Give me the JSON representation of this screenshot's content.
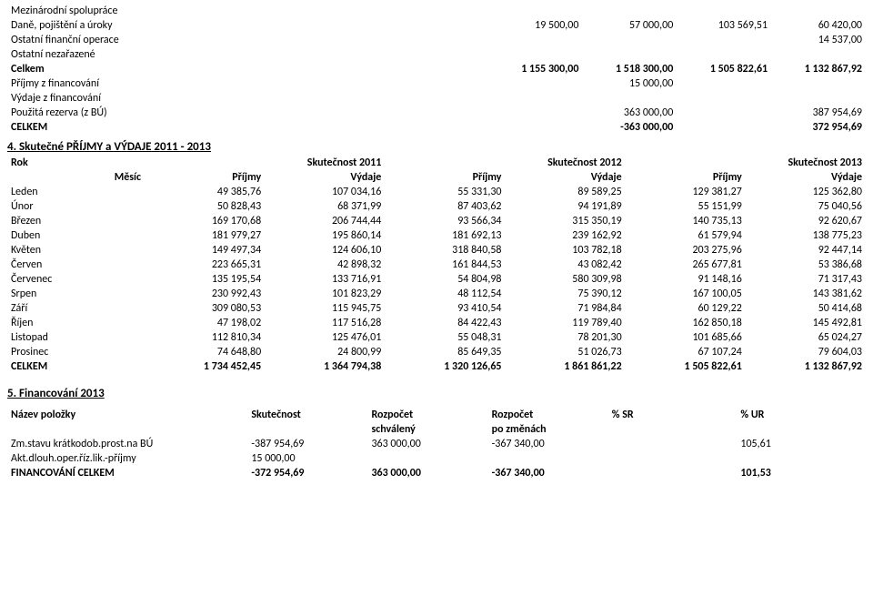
{
  "sectionA": {
    "rows": [
      {
        "label": "Mezinárodní spolupráce",
        "c2": "",
        "c3": "",
        "c4": "",
        "c5": "",
        "c6": "",
        "c7": ""
      },
      {
        "label": "Daně, pojištění a úroky",
        "c2": "",
        "c3": "",
        "c4": "19 500,00",
        "c5": "57 000,00",
        "c6": "103 569,51",
        "c7": "60 420,00"
      },
      {
        "label": "Ostatní finanční operace",
        "c2": "",
        "c3": "",
        "c4": "",
        "c5": "",
        "c6": "",
        "c7": "14 537,00"
      },
      {
        "label": "Ostatní nezařazené",
        "c2": "",
        "c3": "",
        "c4": "",
        "c5": "",
        "c6": "",
        "c7": ""
      },
      {
        "label": "Celkem",
        "bold": true,
        "c2": "",
        "c3": "",
        "c4": "1 155 300,00",
        "c5": "1 518 300,00",
        "c6": "1 505 822,61",
        "c7": "1 132 867,92"
      },
      {
        "label": "Příjmy z financování",
        "c2": "",
        "c3": "",
        "c4": "",
        "c5": "15 000,00",
        "c6": "",
        "c7": ""
      },
      {
        "label": "Výdaje z financování",
        "c2": "",
        "c3": "",
        "c4": "",
        "c5": "",
        "c6": "",
        "c7": ""
      },
      {
        "label": "Použitá rezerva (z BÚ)",
        "c2": "",
        "c3": "",
        "c4": "",
        "c5": "363 000,00",
        "c6": "",
        "c7": "387 954,69"
      },
      {
        "label": "CELKEM",
        "bold": true,
        "c2": "",
        "c3": "",
        "c4": "",
        "c5": "-363 000,00",
        "c6": "",
        "c7": "372 954,69"
      }
    ]
  },
  "section4": {
    "heading": "4. Skutečné PŘÍJMY a VÝDAJE 2011 - 2013",
    "rok_label": "Rok",
    "year1": "Skutečnost 2011",
    "year2": "Skutečnost 2012",
    "year3": "Skutečnost 2013",
    "mesic": "Měsíc",
    "prijmy": "Příjmy",
    "vydaje": "Výdaje",
    "rows": [
      {
        "m": "Leden",
        "p1": "49 385,76",
        "v1": "107 034,16",
        "p2": "55 331,30",
        "v2": "89 589,25",
        "p3": "129 381,27",
        "v3": "125 362,80"
      },
      {
        "m": "Únor",
        "p1": "50 828,43",
        "v1": "68 371,99",
        "p2": "87 403,62",
        "v2": "94 191,89",
        "p3": "55 151,99",
        "v3": "75 040,56"
      },
      {
        "m": "Březen",
        "p1": "169 170,68",
        "v1": "206 744,44",
        "p2": "93 566,34",
        "v2": "315 350,19",
        "p3": "140 735,13",
        "v3": "92 620,67"
      },
      {
        "m": "Duben",
        "p1": "181 979,27",
        "v1": "195 860,14",
        "p2": "181 692,13",
        "v2": "239 162,92",
        "p3": "61 579,94",
        "v3": "138 775,23"
      },
      {
        "m": "Květen",
        "p1": "149 497,34",
        "v1": "124 606,10",
        "p2": "318 840,58",
        "v2": "103 782,18",
        "p3": "203 275,96",
        "v3": "92 447,14"
      },
      {
        "m": "Červen",
        "p1": "223 665,31",
        "v1": "42 898,32",
        "p2": "161 844,53",
        "v2": "43 082,42",
        "p3": "265 677,81",
        "v3": "53 386,68"
      },
      {
        "m": "Červenec",
        "p1": "135 195,54",
        "v1": "133 716,91",
        "p2": "54 804,98",
        "v2": "580 309,98",
        "p3": "91 148,16",
        "v3": "71 317,43"
      },
      {
        "m": "Srpen",
        "p1": "230 992,43",
        "v1": "101 823,29",
        "p2": "48 112,54",
        "v2": "75 390,12",
        "p3": "167 100,05",
        "v3": "143 381,62"
      },
      {
        "m": "Září",
        "p1": "309 080,53",
        "v1": "115 945,75",
        "p2": "93 410,54",
        "v2": "71 984,84",
        "p3": "60 129,22",
        "v3": "50 414,68"
      },
      {
        "m": "Říjen",
        "p1": "47 198,02",
        "v1": "117 516,28",
        "p2": "84 422,43",
        "v2": "119 789,40",
        "p3": "162 850,18",
        "v3": "145 492,81"
      },
      {
        "m": "Listopad",
        "p1": "112 810,34",
        "v1": "125 476,01",
        "p2": "55 048,31",
        "v2": "78 201,30",
        "p3": "101 685,66",
        "v3": "65 024,27"
      },
      {
        "m": "Prosinec",
        "p1": "74 648,80",
        "v1": "24 800,99",
        "p2": "85 649,35",
        "v2": "51 026,73",
        "p3": "67 107,24",
        "v3": "79 604,03"
      },
      {
        "m": "CELKEM",
        "bold": true,
        "p1": "1 734 452,45",
        "v1": "1 364 794,38",
        "p2": "1 320 126,65",
        "v2": "1 861 861,22",
        "p3": "1 505 822,61",
        "v3": "1 132 867,92"
      }
    ]
  },
  "section5": {
    "heading": "5. Financování 2013",
    "header": {
      "c1": "Název položky",
      "c2": "Skutečnost",
      "c3": "Rozpočet",
      "c4": "Rozpočet",
      "c5": "% SR",
      "c6": "% UR"
    },
    "sub": {
      "c3": "schválený",
      "c4": "po změnách"
    },
    "rows": [
      {
        "c1": "Zm.stavu krátkodob.prost.na BÚ",
        "c2": "-387 954,69",
        "c3": "363 000,00",
        "c4": "-367 340,00",
        "c5": "",
        "c6": "105,61"
      },
      {
        "c1": "Akt.dlouh.oper.říz.lik.-příjmy",
        "c2": "15 000,00",
        "c3": "",
        "c4": "",
        "c5": "",
        "c6": ""
      },
      {
        "c1": "FINANCOVÁNÍ CELKEM",
        "bold": true,
        "c2": "-372 954,69",
        "c3": "363 000,00",
        "c4": "-367 340,00",
        "c5": "",
        "c6": "101,53"
      }
    ]
  }
}
